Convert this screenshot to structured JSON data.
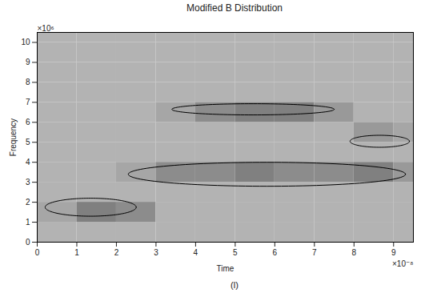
{
  "chart_data": {
    "type": "heatmap",
    "title": "Modified B Distribution",
    "x_label": "Time",
    "y_label": "Frequency",
    "x_exponent_label": "×10⁻⁸",
    "y_exponent_label": "×10⁶",
    "caption": "(l)",
    "xlim": [
      0,
      9.5
    ],
    "ylim": [
      0,
      10.5
    ],
    "xticks": [
      0,
      1,
      2,
      3,
      4,
      5,
      6,
      7,
      8,
      9
    ],
    "yticks": [
      0,
      1,
      2,
      3,
      4,
      5,
      6,
      7,
      8,
      9,
      10
    ],
    "cell_x_edges": [
      0,
      1,
      2,
      3,
      4,
      5,
      6,
      7,
      8,
      9,
      9.5
    ],
    "cell_y_edges": [
      0,
      1,
      2,
      3,
      4,
      5,
      6,
      7,
      8,
      9,
      10,
      10.5
    ],
    "cells": [
      [
        0.3,
        0.3,
        0.3,
        0.3,
        0.3,
        0.3,
        0.3,
        0.3,
        0.3,
        0.3
      ],
      [
        0.35,
        0.5,
        0.45,
        0.3,
        0.3,
        0.3,
        0.3,
        0.3,
        0.3,
        0.3
      ],
      [
        0.3,
        0.3,
        0.3,
        0.3,
        0.3,
        0.3,
        0.3,
        0.3,
        0.3,
        0.3
      ],
      [
        0.3,
        0.3,
        0.35,
        0.45,
        0.45,
        0.5,
        0.45,
        0.45,
        0.5,
        0.4
      ],
      [
        0.3,
        0.3,
        0.3,
        0.3,
        0.3,
        0.3,
        0.3,
        0.3,
        0.3,
        0.3
      ],
      [
        0.3,
        0.3,
        0.3,
        0.3,
        0.3,
        0.3,
        0.3,
        0.3,
        0.4,
        0.35
      ],
      [
        0.3,
        0.3,
        0.3,
        0.35,
        0.45,
        0.5,
        0.5,
        0.4,
        0.3,
        0.3
      ],
      [
        0.3,
        0.3,
        0.3,
        0.3,
        0.3,
        0.3,
        0.3,
        0.3,
        0.3,
        0.3
      ],
      [
        0.3,
        0.3,
        0.3,
        0.3,
        0.3,
        0.3,
        0.3,
        0.3,
        0.3,
        0.3
      ],
      [
        0.3,
        0.3,
        0.3,
        0.3,
        0.3,
        0.3,
        0.3,
        0.3,
        0.3,
        0.3
      ],
      [
        0.3,
        0.3,
        0.3,
        0.3,
        0.3,
        0.3,
        0.3,
        0.3,
        0.3,
        0.3
      ]
    ],
    "value_range": [
      0,
      1
    ],
    "ellipses": [
      {
        "cx": 1.35,
        "cy": 1.75,
        "rx": 1.15,
        "ry": 0.45
      },
      {
        "cx": 5.8,
        "cy": 3.4,
        "rx": 3.5,
        "ry": 0.6
      },
      {
        "cx": 5.45,
        "cy": 6.65,
        "rx": 2.05,
        "ry": 0.28
      },
      {
        "cx": 8.65,
        "cy": 5.05,
        "rx": 0.75,
        "ry": 0.3
      }
    ],
    "grid": false
  }
}
